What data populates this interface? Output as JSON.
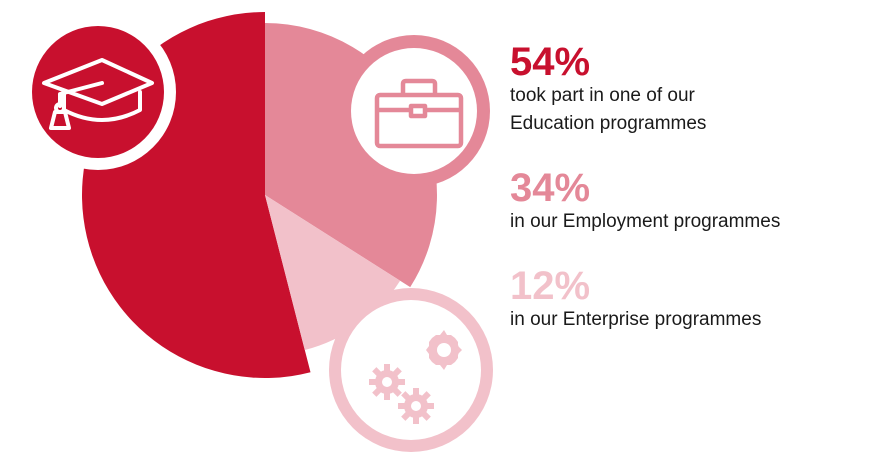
{
  "chart_data": {
    "type": "pie",
    "title": "",
    "slices": [
      {
        "label": "took part in one of our Education programmes",
        "value": 54,
        "value_text": "54%",
        "color": "#c8102e",
        "icon": "graduation-cap-icon"
      },
      {
        "label": "in our Employment programmes",
        "value": 34,
        "value_text": "34%",
        "color": "#e48898",
        "icon": "briefcase-icon"
      },
      {
        "label": "in our Enterprise programmes",
        "value": 12,
        "value_text": "12%",
        "color": "#f2c1ca",
        "icon": "gears-icon"
      }
    ]
  },
  "legend": [
    {
      "pct": "54%",
      "lines": [
        "took part in one of our",
        "Education programmes"
      ],
      "color": "#c8102e"
    },
    {
      "pct": "34%",
      "lines": [
        "in our Employment programmes"
      ],
      "color": "#e48898"
    },
    {
      "pct": "12%",
      "lines": [
        "in our Enterprise programmes"
      ],
      "color": "#f2c1ca"
    }
  ]
}
